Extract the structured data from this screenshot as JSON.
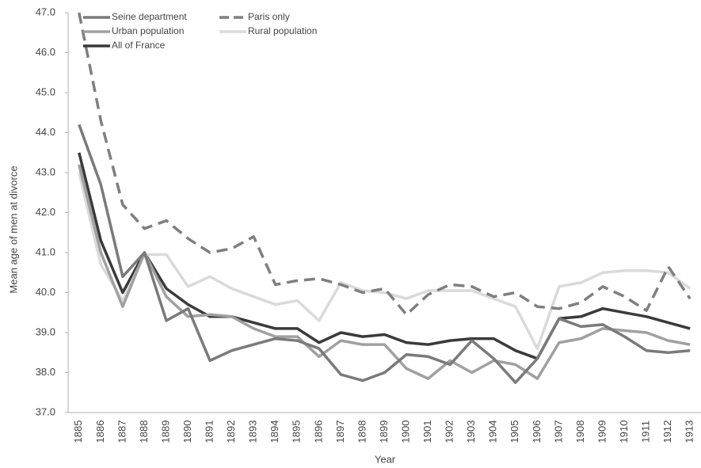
{
  "chart_data": {
    "type": "line",
    "y_label": "Mean age of men at divorce",
    "x_label": "Year",
    "categories": [
      "1885",
      "1886",
      "1887",
      "1888",
      "1889",
      "1890",
      "1891",
      "1892",
      "1893",
      "1894",
      "1895",
      "1896",
      "1897",
      "1898",
      "1899",
      "1900",
      "1901",
      "1902",
      "1903",
      "1904",
      "1905",
      "1906",
      "1907",
      "1908",
      "1909",
      "1910",
      "1911",
      "1912",
      "1913"
    ],
    "ylim": [
      37,
      47
    ],
    "yticks": [
      {
        "value": 37,
        "label": "37.0"
      },
      {
        "value": 38,
        "label": "38.0"
      },
      {
        "value": 39,
        "label": "39.0"
      },
      {
        "value": 40,
        "label": "40.0"
      },
      {
        "value": 41,
        "label": "41.0"
      },
      {
        "value": 42,
        "label": "42.0"
      },
      {
        "value": 43,
        "label": "43.0"
      },
      {
        "value": 44,
        "label": "44.0"
      },
      {
        "value": 45,
        "label": "45.0"
      },
      {
        "value": 46,
        "label": "46.0"
      },
      {
        "value": 47,
        "label": "47.0"
      }
    ],
    "grid": false,
    "series": [
      {
        "name": "Seine department",
        "color": "#7a7a7a",
        "dashed": false,
        "values": [
          44.2,
          42.7,
          40.4,
          41.0,
          39.3,
          39.6,
          38.3,
          38.55,
          38.7,
          38.85,
          38.8,
          38.6,
          37.95,
          37.8,
          38.0,
          38.45,
          38.4,
          38.2,
          38.8,
          38.35,
          37.75,
          38.35,
          39.35,
          39.15,
          39.2,
          38.9,
          38.55,
          38.5,
          38.55
        ]
      },
      {
        "name": "Paris only",
        "color": "#7f7f7f",
        "dashed": true,
        "values": [
          47.0,
          44.3,
          42.2,
          41.6,
          41.8,
          41.35,
          41.0,
          41.1,
          41.4,
          40.2,
          40.3,
          40.35,
          40.2,
          40.0,
          40.1,
          39.45,
          39.95,
          40.2,
          40.15,
          39.9,
          40.0,
          39.65,
          39.6,
          39.75,
          40.15,
          39.9,
          39.55,
          40.65,
          39.85
        ]
      },
      {
        "name": "Urban population",
        "color": "#a0a0a0",
        "dashed": false,
        "values": [
          43.2,
          41.0,
          39.65,
          41.0,
          39.9,
          39.4,
          39.45,
          39.4,
          39.1,
          38.9,
          38.9,
          38.4,
          38.8,
          38.7,
          38.7,
          38.1,
          37.85,
          38.3,
          38.0,
          38.3,
          38.2,
          37.85,
          38.75,
          38.85,
          39.1,
          39.05,
          39.0,
          38.8,
          38.7
        ]
      },
      {
        "name": "Rural population",
        "color": "#dadada",
        "dashed": false,
        "values": [
          43.0,
          40.7,
          39.8,
          40.95,
          40.95,
          40.15,
          40.4,
          40.1,
          39.9,
          39.7,
          39.8,
          39.3,
          40.25,
          40.05,
          40.0,
          39.85,
          40.05,
          40.05,
          40.05,
          39.85,
          39.65,
          38.6,
          40.15,
          40.25,
          40.5,
          40.55,
          40.55,
          40.5,
          40.1
        ]
      },
      {
        "name": "All of France",
        "color": "#3a3a3a",
        "dashed": false,
        "values": [
          43.5,
          41.3,
          40.0,
          41.0,
          40.1,
          39.7,
          39.4,
          39.4,
          39.25,
          39.1,
          39.1,
          38.75,
          39.0,
          38.9,
          38.95,
          38.75,
          38.7,
          38.8,
          38.85,
          38.85,
          38.55,
          38.35,
          39.35,
          39.4,
          39.6,
          39.5,
          39.4,
          39.25,
          39.1
        ]
      }
    ]
  }
}
